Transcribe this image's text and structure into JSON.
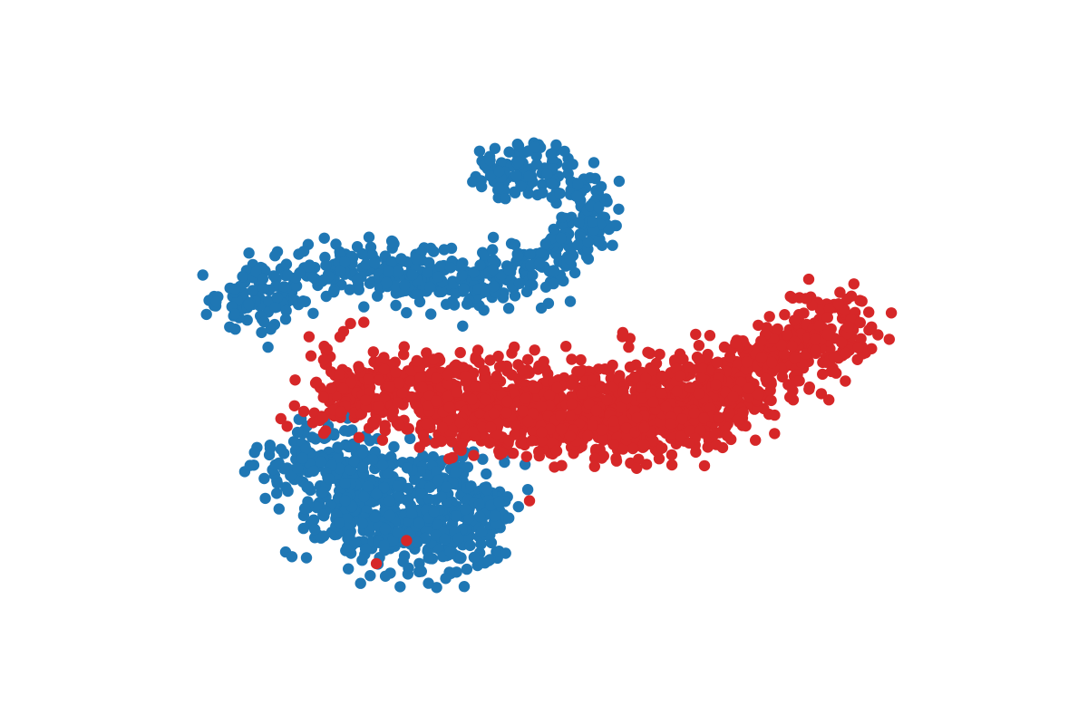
{
  "chart_data": {
    "type": "scatter",
    "title": "",
    "xlabel": "",
    "ylabel": "",
    "xlim": [
      -60,
      60
    ],
    "ylim": [
      -40,
      40
    ],
    "axes_visible": false,
    "grid": false,
    "legend": "none",
    "series": [
      {
        "color": "#1f77b4",
        "clusters": [
          {
            "shape": "band",
            "n": 600,
            "spread": 2.2,
            "path": [
              [
                -47,
                9
              ],
              [
                -42,
                10
              ],
              [
                -35,
                13
              ],
              [
                -28,
                14
              ],
              [
                -21,
                13
              ],
              [
                -15,
                12
              ],
              [
                -9,
                12
              ],
              [
                -5,
                13
              ],
              [
                -1,
                14
              ],
              [
                2,
                17
              ],
              [
                5,
                20
              ],
              [
                6,
                23
              ],
              [
                4,
                25
              ],
              [
                -1,
                27
              ],
              [
                -6,
                28
              ],
              [
                -10,
                27
              ]
            ]
          },
          {
            "shape": "band",
            "n": 380,
            "spread": 3.0,
            "path": [
              [
                -40,
                -13
              ],
              [
                -37,
                -12
              ],
              [
                -31,
                -14
              ],
              [
                -25,
                -16
              ],
              [
                -19,
                -17
              ],
              [
                -14,
                -18
              ],
              [
                -10,
                -19
              ],
              [
                -8,
                -20
              ]
            ]
          },
          {
            "shape": "band",
            "n": 320,
            "spread": 3.0,
            "path": [
              [
                -35,
                -21
              ],
              [
                -28,
                -22
              ],
              [
                -21,
                -25
              ],
              [
                -14,
                -25
              ],
              [
                -10,
                -22
              ]
            ]
          }
        ]
      },
      {
        "color": "#d62728",
        "clusters": [
          {
            "shape": "band",
            "n": 1050,
            "spread": 3.2,
            "path": [
              [
                -33,
                -4
              ],
              [
                -28,
                -3
              ],
              [
                -22,
                -3
              ],
              [
                -16,
                -4
              ],
              [
                -10,
                -4
              ],
              [
                -4,
                -4
              ],
              [
                2,
                -4
              ],
              [
                8,
                -4
              ],
              [
                14,
                -4
              ],
              [
                20,
                -3
              ],
              [
                26,
                -2
              ],
              [
                30,
                0
              ],
              [
                33,
                3
              ],
              [
                37,
                4
              ],
              [
                41,
                5
              ],
              [
                43,
                5
              ]
            ]
          },
          {
            "shape": "band",
            "n": 700,
            "spread": 2.6,
            "path": [
              [
                -18,
                -6
              ],
              [
                -10,
                -7
              ],
              [
                -3,
                -8
              ],
              [
                4,
                -9
              ],
              [
                11,
                -9
              ],
              [
                18,
                -8
              ],
              [
                23,
                -6
              ],
              [
                27,
                -3
              ]
            ]
          }
        ],
        "outliers": [
          [
            -21.5,
            -25
          ],
          [
            -25.8,
            -28.3
          ],
          [
            -4,
            -19.3
          ]
        ]
      }
    ]
  }
}
